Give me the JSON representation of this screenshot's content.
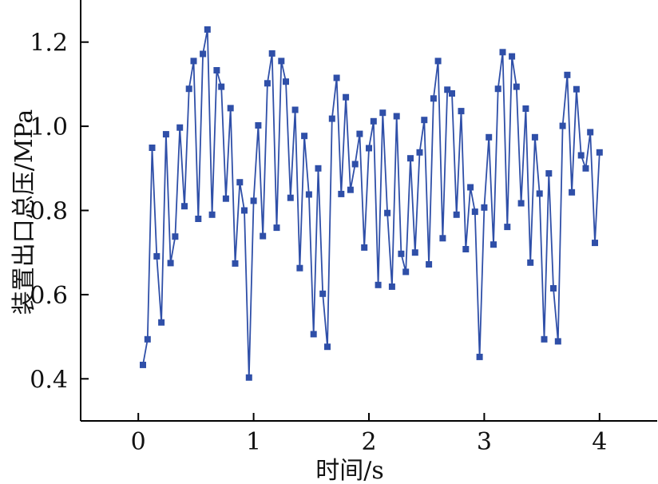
{
  "chart_data": {
    "type": "line",
    "title": "",
    "xlabel": "时间/s",
    "ylabel": "装置出口总压/MPa",
    "xlim": [
      -0.5,
      4.5
    ],
    "ylim": [
      0.3,
      1.3
    ],
    "x_ticks": [
      0,
      1,
      2,
      3,
      4
    ],
    "x_tick_labels": [
      "0",
      "1",
      "2",
      "3",
      "4"
    ],
    "y_ticks": [
      0.4,
      0.6,
      0.8,
      1.0,
      1.2
    ],
    "y_tick_labels": [
      "0.4",
      "0.6",
      "0.8",
      "1.0",
      "1.2"
    ],
    "grid": false,
    "legend": "none",
    "series_color": "#2f4fa8",
    "series": [
      {
        "x": [
          0.04,
          0.08,
          0.12,
          0.16,
          0.2,
          0.24,
          0.28,
          0.32,
          0.36,
          0.4,
          0.44,
          0.48,
          0.52,
          0.56,
          0.6,
          0.64,
          0.68,
          0.72,
          0.76,
          0.8,
          0.84,
          0.88,
          0.92,
          0.96,
          1.0,
          1.04,
          1.08,
          1.12,
          1.16,
          1.2,
          1.24,
          1.28,
          1.32,
          1.36,
          1.4,
          1.44,
          1.48,
          1.52,
          1.56,
          1.6,
          1.64,
          1.68,
          1.72,
          1.76,
          1.8,
          1.84,
          1.88,
          1.92,
          1.96,
          2.0,
          2.04,
          2.08,
          2.12,
          2.16,
          2.2,
          2.24,
          2.28,
          2.32,
          2.36,
          2.4,
          2.44,
          2.48,
          2.52,
          2.56,
          2.6,
          2.64,
          2.68,
          2.72,
          2.76,
          2.8,
          2.84,
          2.88,
          2.92,
          2.96,
          3.0,
          3.04,
          3.08,
          3.12,
          3.16,
          3.2,
          3.24,
          3.28,
          3.32,
          3.36,
          3.4,
          3.44,
          3.48,
          3.52,
          3.56,
          3.6,
          3.64,
          3.68,
          3.72,
          3.76,
          3.8,
          3.84,
          3.88,
          3.92,
          3.96,
          4.0
        ],
        "values": [
          0.433,
          0.494,
          0.949,
          0.691,
          0.534,
          0.981,
          0.675,
          0.738,
          0.997,
          0.81,
          1.089,
          1.155,
          0.78,
          1.172,
          1.23,
          0.79,
          1.133,
          1.094,
          0.828,
          1.043,
          0.674,
          0.867,
          0.8,
          0.403,
          0.823,
          1.002,
          0.739,
          1.102,
          1.173,
          0.759,
          1.155,
          1.106,
          0.83,
          1.039,
          0.663,
          0.977,
          0.838,
          0.506,
          0.9,
          0.602,
          0.476,
          1.018,
          1.115,
          0.839,
          1.069,
          0.849,
          0.91,
          0.982,
          0.712,
          0.948,
          1.012,
          0.623,
          1.032,
          0.794,
          0.619,
          1.024,
          0.697,
          0.654,
          0.924,
          0.7,
          0.938,
          1.015,
          0.672,
          1.066,
          1.155,
          0.734,
          1.087,
          1.078,
          0.79,
          1.036,
          0.708,
          0.855,
          0.797,
          0.452,
          0.807,
          0.974,
          0.719,
          1.089,
          1.176,
          0.761,
          1.166,
          1.094,
          0.817,
          1.042,
          0.676,
          0.974,
          0.84,
          0.494,
          0.888,
          0.615,
          0.489,
          1.001,
          1.122,
          0.843,
          1.088,
          0.931,
          0.9,
          0.986,
          0.723,
          0.938
        ]
      }
    ]
  }
}
